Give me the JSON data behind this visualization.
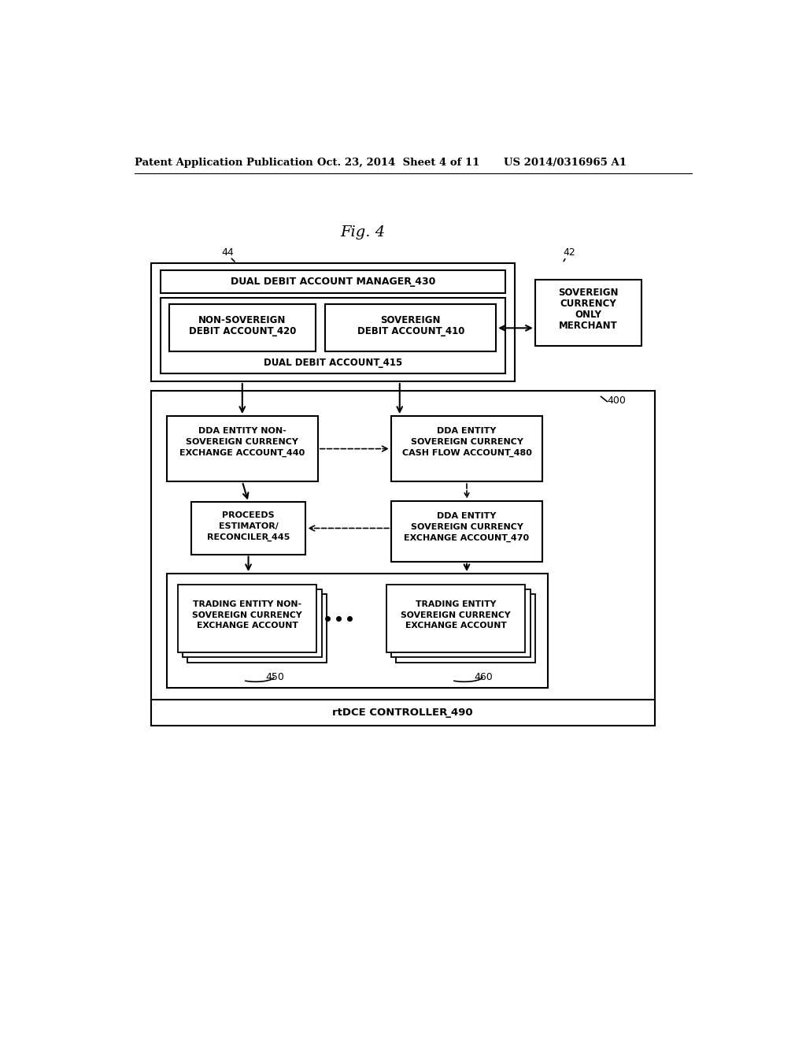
{
  "bg_color": "#ffffff",
  "header_line1": "Patent Application Publication",
  "header_date": "Oct. 23, 2014  Sheet 4 of 11",
  "header_patent": "US 2014/0316965 A1"
}
